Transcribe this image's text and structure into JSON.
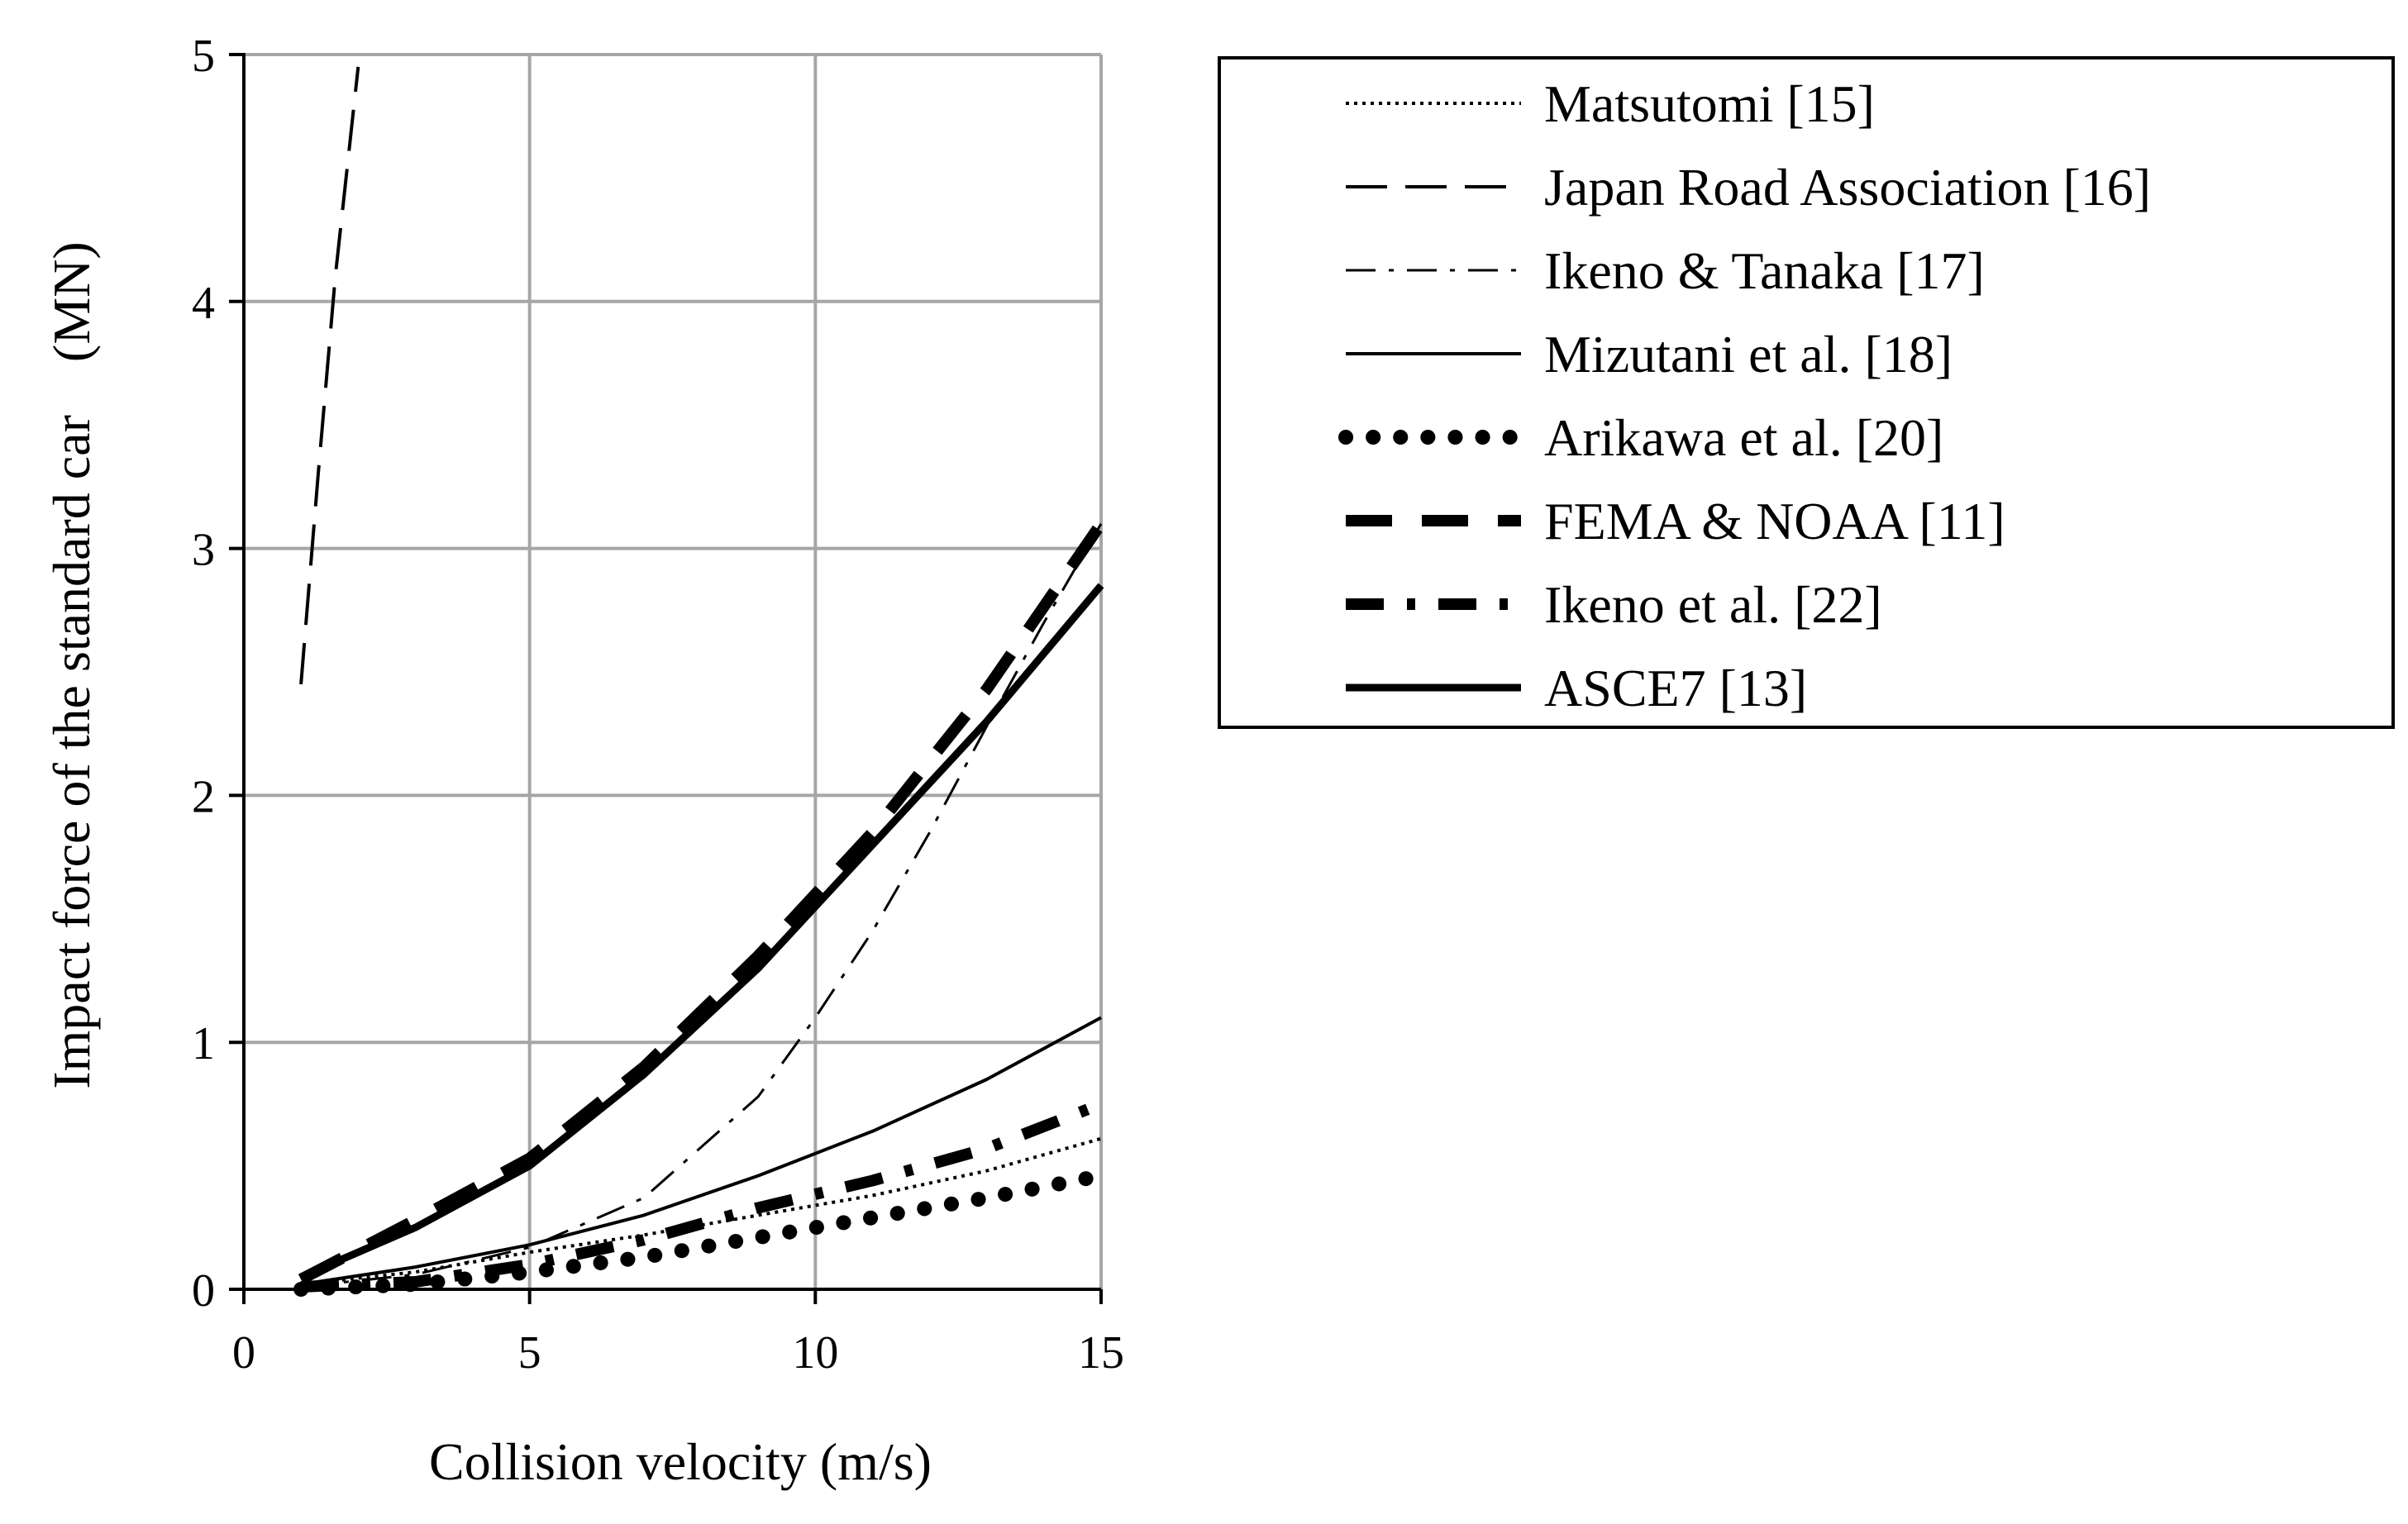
{
  "chart_data": {
    "type": "line",
    "title": "",
    "xlabel": "Collision velocity (m/s)",
    "ylabel": "Impact force of the standard car　(MN)",
    "xlim": [
      0,
      15
    ],
    "ylim": [
      0,
      5
    ],
    "xticks": [
      "0",
      "5",
      "10",
      "15"
    ],
    "yticks": [
      "0",
      "1",
      "2",
      "3",
      "4",
      "5"
    ],
    "grid": true,
    "legend_position": "right",
    "series": [
      {
        "name": "Matsutomi [15]",
        "style": "dotted-thin",
        "x": [
          1,
          3,
          5,
          7,
          9,
          11,
          13,
          15
        ],
        "y": [
          0.02,
          0.07,
          0.15,
          0.22,
          0.3,
          0.38,
          0.48,
          0.61
        ]
      },
      {
        "name": "Japan Road Association [16]",
        "style": "dashed-thin",
        "x": [
          1.0,
          1.3,
          1.6,
          2.0
        ],
        "y": [
          2.45,
          3.3,
          4.1,
          4.95
        ]
      },
      {
        "name": "Ikeno & Tanaka [17]",
        "style": "dashdot-thin",
        "x": [
          1,
          3,
          5,
          7,
          9,
          10,
          11,
          12,
          13,
          14,
          15
        ],
        "y": [
          0.01,
          0.06,
          0.17,
          0.37,
          0.78,
          1.1,
          1.45,
          1.85,
          2.28,
          2.7,
          3.1
        ]
      },
      {
        "name": "Mizutani et al. [18]",
        "style": "solid-thin",
        "x": [
          1,
          3,
          5,
          7,
          9,
          11,
          13,
          15
        ],
        "y": [
          0.02,
          0.09,
          0.18,
          0.3,
          0.46,
          0.64,
          0.85,
          1.1
        ]
      },
      {
        "name": "Arikawa et al. [20]",
        "style": "dotted-thick",
        "x": [
          1,
          3,
          5,
          7,
          9,
          11,
          13,
          15
        ],
        "y": [
          0.0,
          0.02,
          0.07,
          0.13,
          0.21,
          0.29,
          0.37,
          0.46
        ]
      },
      {
        "name": "FEMA & NOAA [11]",
        "style": "dashed-thick",
        "x": [
          1,
          3,
          5,
          7,
          9,
          11,
          13,
          15
        ],
        "y": [
          0.04,
          0.28,
          0.53,
          0.9,
          1.35,
          1.85,
          2.43,
          3.1
        ]
      },
      {
        "name": "Ikeno et al. [22]",
        "style": "dashdot-thick",
        "x": [
          1,
          3,
          5,
          7,
          9,
          11,
          13,
          15
        ],
        "y": [
          0.01,
          0.03,
          0.1,
          0.2,
          0.33,
          0.44,
          0.57,
          0.75
        ]
      },
      {
        "name": "ASCE7 [13]",
        "style": "solid-thick",
        "x": [
          1,
          3,
          5,
          7,
          9,
          11,
          13,
          15
        ],
        "y": [
          0.05,
          0.25,
          0.5,
          0.87,
          1.3,
          1.8,
          2.3,
          2.85
        ]
      }
    ]
  }
}
